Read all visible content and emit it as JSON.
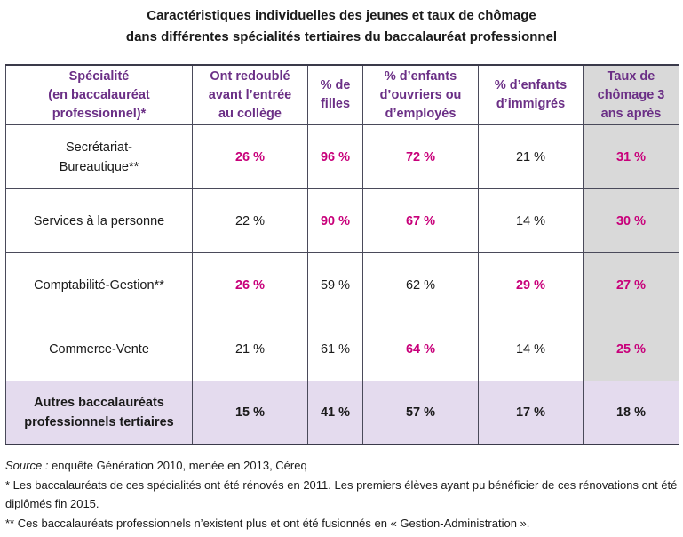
{
  "title": {
    "line1": "Caractéristiques individuelles des jeunes et taux de chômage",
    "line2": "dans différentes spécialités tertiaires du baccalauréat professionnel"
  },
  "headers": [
    "Spécialité\n(en baccalauréat\nprofessionnel)*",
    "Ont redoublé\navant l’entrée\nau collège",
    "% de\nfilles",
    "% d’enfants\nd’ouvriers ou\nd’employés",
    "% d’enfants\nd’immigrés",
    "Taux de\nchômage 3\nans après"
  ],
  "rows": [
    {
      "label": "Secrétariat-\nBureautique**",
      "cells": [
        {
          "v": "26 %",
          "hl": true
        },
        {
          "v": "96 %",
          "hl": true
        },
        {
          "v": "72 %",
          "hl": true
        },
        {
          "v": "21 %",
          "hl": false
        },
        {
          "v": "31 %",
          "hl": true
        }
      ]
    },
    {
      "label": "Services à la personne",
      "cells": [
        {
          "v": "22 %",
          "hl": false
        },
        {
          "v": "90 %",
          "hl": true
        },
        {
          "v": "67 %",
          "hl": true
        },
        {
          "v": "14 %",
          "hl": false
        },
        {
          "v": "30 %",
          "hl": true
        }
      ]
    },
    {
      "label": "Comptabilité-Gestion**",
      "cells": [
        {
          "v": "26 %",
          "hl": true
        },
        {
          "v": "59 %",
          "hl": false
        },
        {
          "v": "62 %",
          "hl": false
        },
        {
          "v": "29 %",
          "hl": true
        },
        {
          "v": "27 %",
          "hl": true
        }
      ]
    },
    {
      "label": "Commerce-Vente",
      "cells": [
        {
          "v": "21 %",
          "hl": false
        },
        {
          "v": "61 %",
          "hl": false
        },
        {
          "v": "64 %",
          "hl": true
        },
        {
          "v": "14 %",
          "hl": false
        },
        {
          "v": "25 %",
          "hl": true
        }
      ]
    }
  ],
  "total": {
    "label": "Autres baccalauréats\nprofessionnels tertiaires",
    "cells": [
      "15 %",
      "41 %",
      "57 %",
      "17 %",
      "18 %"
    ]
  },
  "notes": {
    "source_label": "Source :",
    "source_text": " enquête Génération 2010, menée en 2013, Céreq",
    "note1": "* Les baccalauréats de ces spécialités ont été rénovés en 2011. Les premiers élèves ayant pu bénéficier de ces rénovations ont été diplômés fin 2015.",
    "note2": "** Ces baccalauréats professionnels n’existent plus et ont été fusionnés en « Gestion-Administration »."
  },
  "colors": {
    "header_text": "#6b2f86",
    "highlight_text": "#c8007a",
    "shaded_column": "#d9d9d9",
    "total_row": "#e4dbee"
  }
}
